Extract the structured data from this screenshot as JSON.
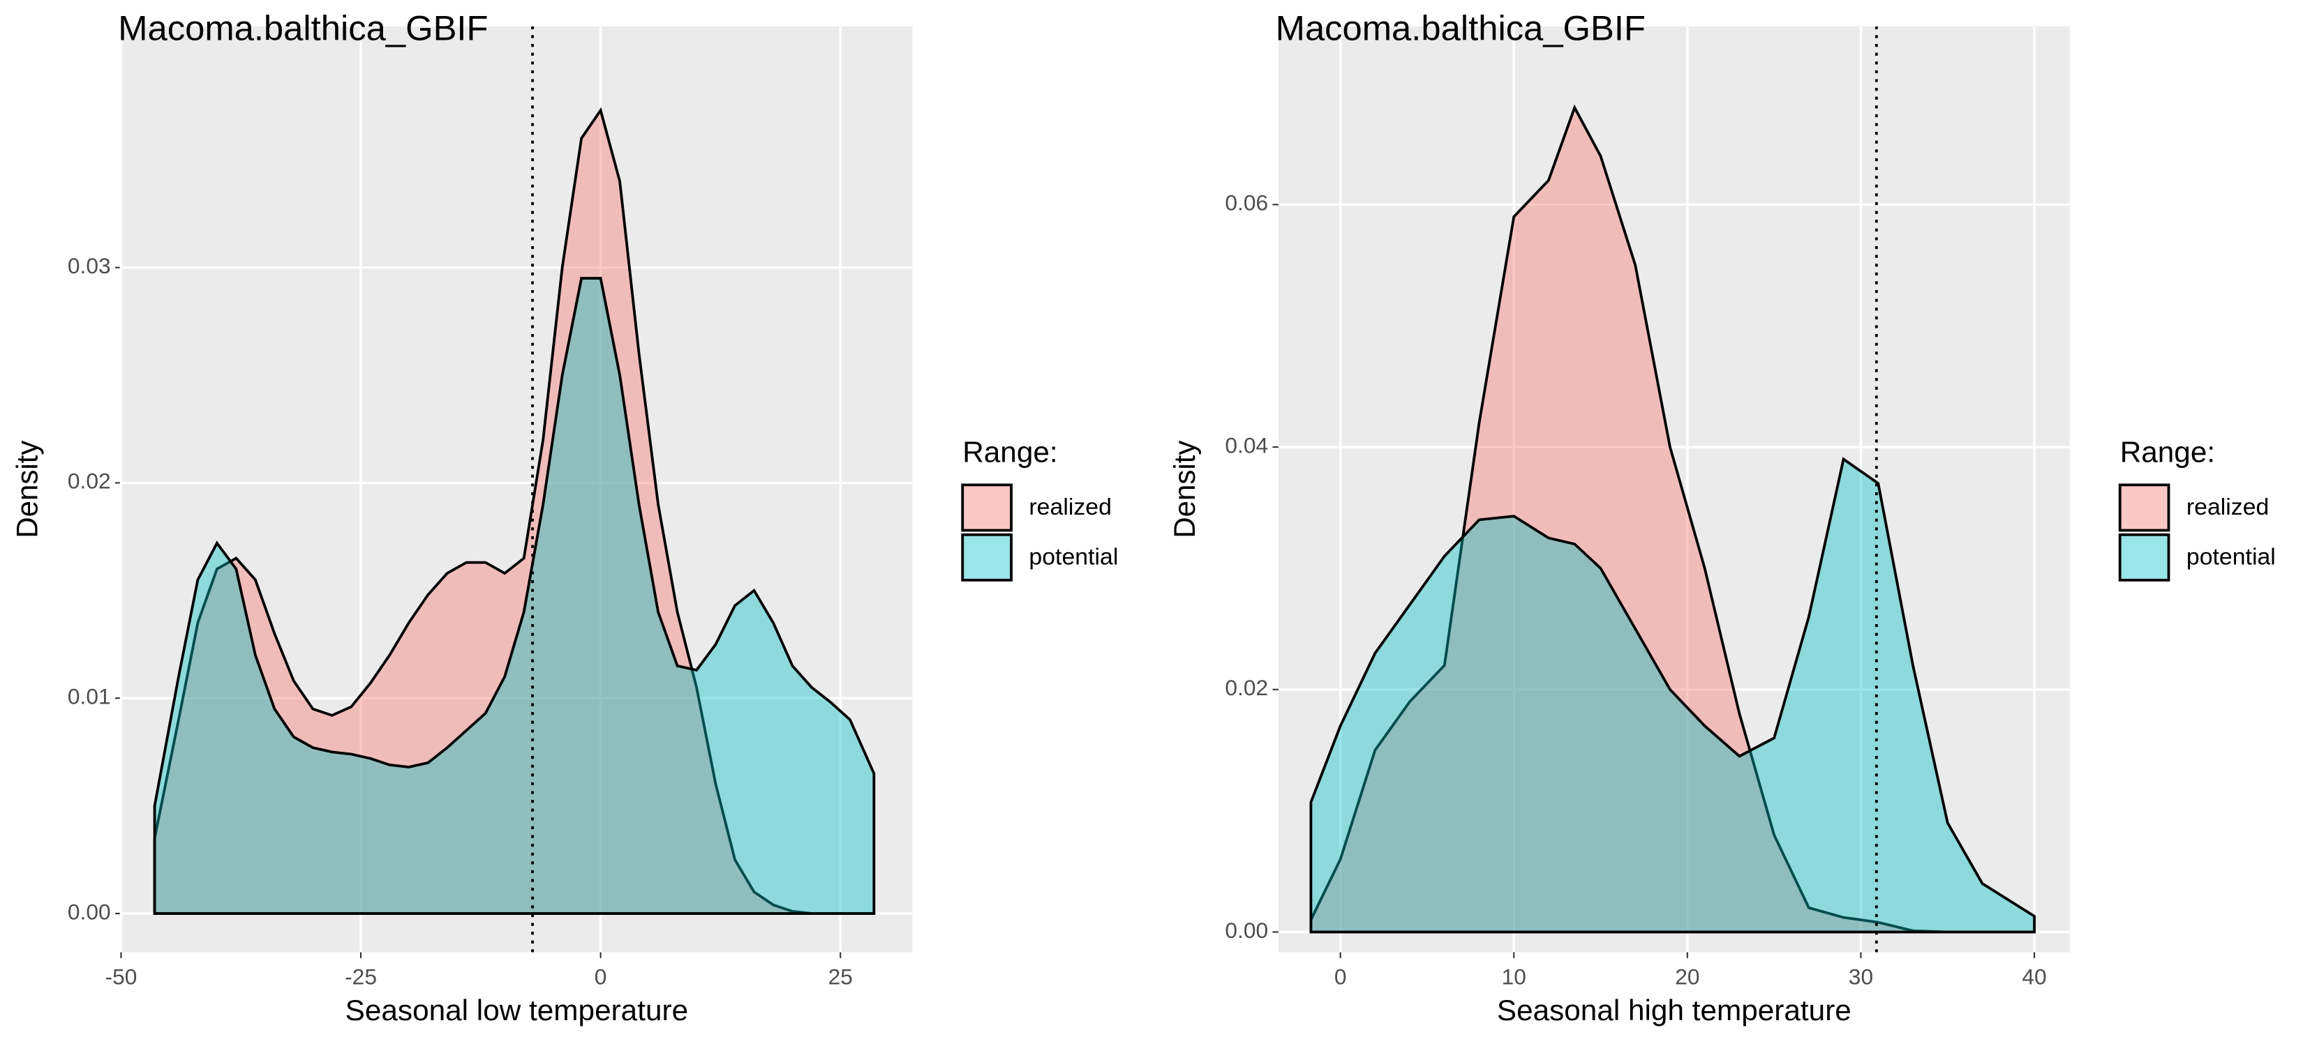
{
  "chart_data": [
    {
      "type": "area",
      "title": "Macoma.balthica_GBIF",
      "xlabel": "Seasonal low temperature",
      "ylabel": "Density",
      "x": [
        -46.5,
        -44,
        -42,
        -40,
        -38,
        -36,
        -34,
        -32,
        -30,
        -28,
        -26,
        -24,
        -22,
        -20,
        -18,
        -16,
        -14,
        -12,
        -10,
        -8,
        -6,
        -4,
        -2,
        0,
        2,
        4,
        6,
        8,
        10,
        12,
        14,
        16,
        18,
        20,
        22,
        24,
        26,
        28.5
      ],
      "series": [
        {
          "name": "realized",
          "color": "#F8766D",
          "values": [
            0.0035,
            0.009,
            0.0135,
            0.016,
            0.0165,
            0.0155,
            0.013,
            0.0108,
            0.0095,
            0.0092,
            0.0096,
            0.0107,
            0.012,
            0.0135,
            0.0148,
            0.0158,
            0.0163,
            0.0163,
            0.0158,
            0.0165,
            0.022,
            0.03,
            0.036,
            0.0373,
            0.034,
            0.026,
            0.019,
            0.014,
            0.0105,
            0.006,
            0.0025,
            0.001,
            0.0004,
            0.0001,
            0,
            0,
            0,
            0
          ]
        },
        {
          "name": "potential",
          "color": "#00BFC4",
          "values": [
            0.005,
            0.011,
            0.0155,
            0.0172,
            0.016,
            0.012,
            0.0095,
            0.0082,
            0.0077,
            0.0075,
            0.0074,
            0.0072,
            0.0069,
            0.0068,
            0.007,
            0.0077,
            0.0085,
            0.0093,
            0.011,
            0.014,
            0.019,
            0.025,
            0.0295,
            0.0295,
            0.025,
            0.019,
            0.014,
            0.0115,
            0.0113,
            0.0125,
            0.0143,
            0.015,
            0.0135,
            0.0115,
            0.0105,
            0.0098,
            0.009,
            0.0065
          ]
        }
      ],
      "vline": -7.1,
      "xlim": [
        -50,
        32.5
      ],
      "xticks": [
        -50,
        -25,
        0,
        25
      ],
      "ylim": [
        -0.0018,
        0.0412
      ],
      "yticks": [
        {
          "value": 0,
          "label": "0.00"
        },
        {
          "value": 0.01,
          "label": "0.01"
        },
        {
          "value": 0.02,
          "label": "0.02"
        },
        {
          "value": 0.03,
          "label": "0.03"
        }
      ],
      "legend_title": "Range:",
      "grid": true
    },
    {
      "type": "area",
      "title": "Macoma.balthica_GBIF",
      "xlabel": "Seasonal high temperature",
      "ylabel": "Density",
      "x": [
        -1.7,
        0,
        2,
        4,
        6,
        8,
        10,
        12,
        13.5,
        15,
        17,
        19,
        21,
        23,
        25,
        27,
        29,
        31,
        33,
        35,
        37,
        40
      ],
      "series": [
        {
          "name": "realized",
          "color": "#F8766D",
          "values": [
            0.001,
            0.006,
            0.015,
            0.019,
            0.022,
            0.042,
            0.059,
            0.062,
            0.068,
            0.064,
            0.055,
            0.04,
            0.03,
            0.018,
            0.008,
            0.002,
            0.0012,
            0.0008,
            0.0001,
            0,
            0,
            0
          ]
        },
        {
          "name": "potential",
          "color": "#00BFC4",
          "values": [
            0.0107,
            0.017,
            0.023,
            0.027,
            0.031,
            0.034,
            0.0343,
            0.0325,
            0.032,
            0.03,
            0.025,
            0.02,
            0.017,
            0.0145,
            0.016,
            0.026,
            0.039,
            0.037,
            0.022,
            0.009,
            0.004,
            0.0013
          ]
        }
      ],
      "vline": 30.9,
      "xlim": [
        -3.57,
        42.04
      ],
      "xticks": [
        0,
        10,
        20,
        30,
        40
      ],
      "ylim": [
        -0.00167,
        0.0747
      ],
      "yticks": [
        {
          "value": 0,
          "label": "0.00"
        },
        {
          "value": 0.02,
          "label": "0.02"
        },
        {
          "value": 0.04,
          "label": "0.04"
        },
        {
          "value": 0.06,
          "label": "0.06"
        }
      ],
      "legend_title": "Range:",
      "grid": true
    }
  ]
}
